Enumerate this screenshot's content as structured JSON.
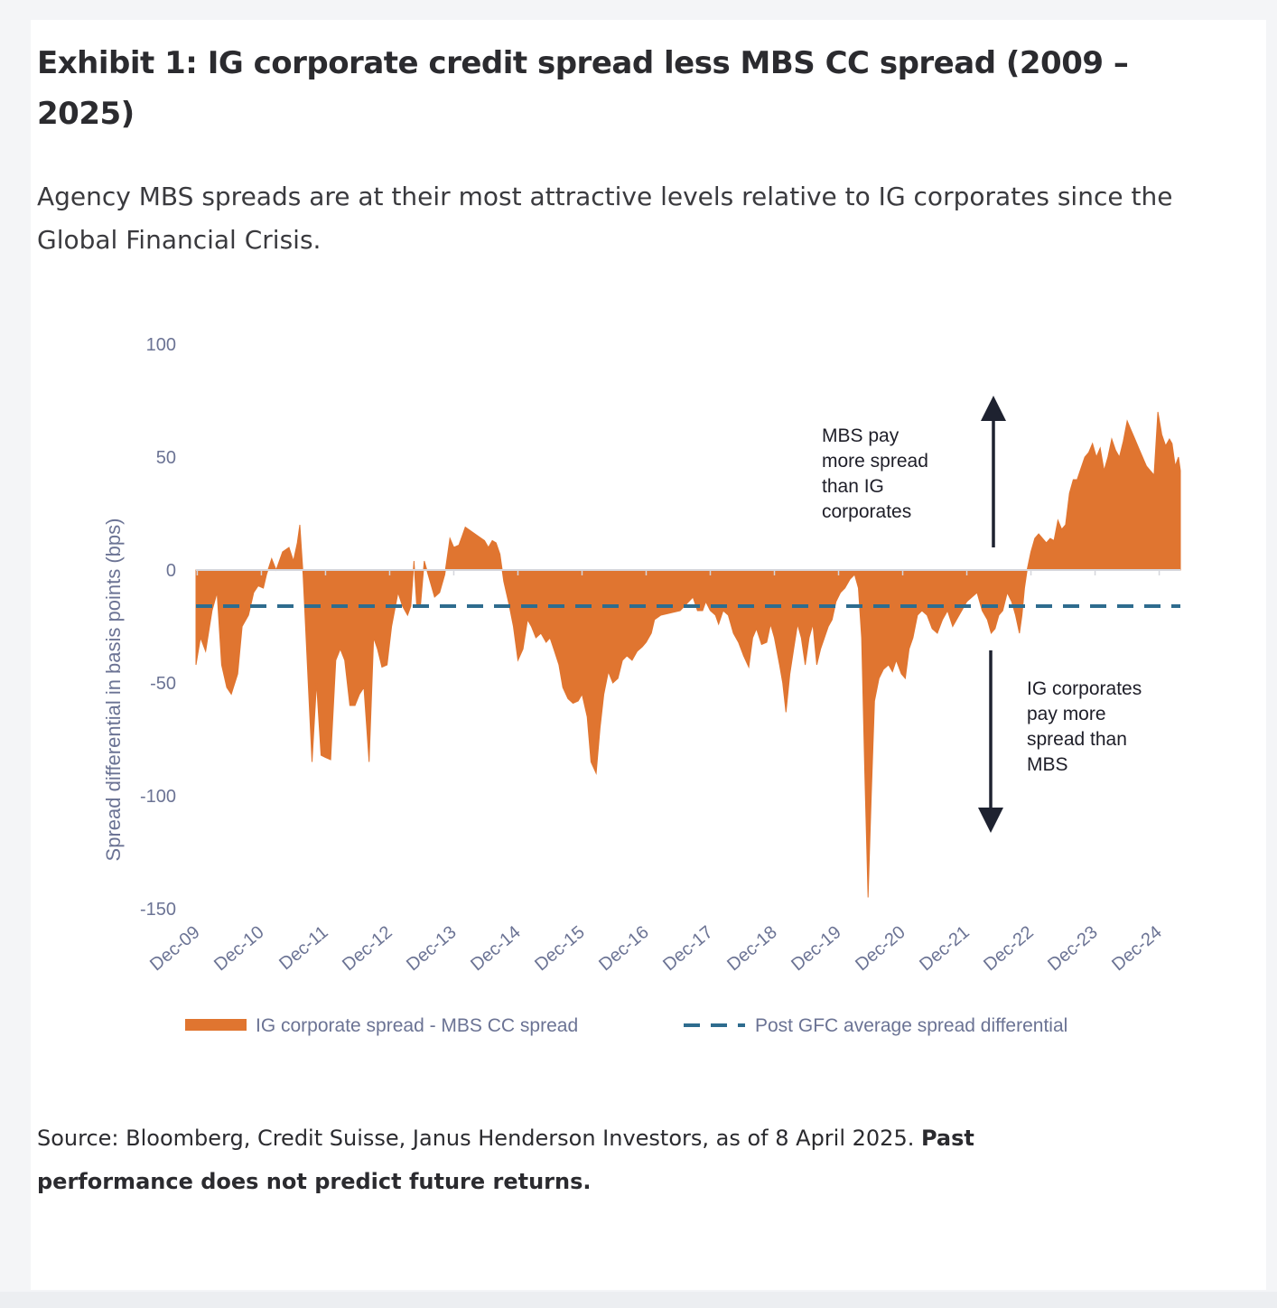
{
  "exhibit": {
    "title": "Exhibit 1: IG corporate credit spread less MBS CC spread (2009 – 2025)",
    "subtitle": "Agency MBS spreads are at their most attractive levels relative to IG corporates since the Global Financial Crisis.",
    "source_text": "Source: Bloomberg, Credit Suisse, Janus Henderson Investors, as of 8 April 2025. ",
    "source_bold": "Past performance does not predict future returns."
  },
  "colors": {
    "area": "#e07530",
    "dashed_line": "#2e6c8e",
    "axis_text": "#6b7394",
    "annotation_text": "#1e1e28",
    "arrow": "#1e2230"
  },
  "chart_data": {
    "type": "area",
    "ylabel": "Spread differential in basis points (bps)",
    "ylim": [
      -150,
      100
    ],
    "yticks": [
      100,
      50,
      0,
      -50,
      -100,
      -150
    ],
    "x_tick_labels": [
      "Dec-09",
      "Dec-10",
      "Dec-11",
      "Dec-12",
      "Dec-13",
      "Dec-14",
      "Dec-15",
      "Dec-16",
      "Dec-17",
      "Dec-18",
      "Dec-19",
      "Dec-20",
      "Dec-21",
      "Dec-22",
      "Dec-23",
      "Dec-24"
    ],
    "xlim": [
      2009.9,
      2025.25
    ],
    "grid": false,
    "legend_position": "bottom",
    "series": [
      {
        "name": "IG corporate spread - MBS CC spread",
        "type": "area",
        "points": [
          [
            2009.9,
            -42
          ],
          [
            2009.97,
            -30
          ],
          [
            2010.05,
            -36
          ],
          [
            2010.15,
            -18
          ],
          [
            2010.23,
            -10
          ],
          [
            2010.3,
            -42
          ],
          [
            2010.38,
            -52
          ],
          [
            2010.45,
            -55
          ],
          [
            2010.55,
            -46
          ],
          [
            2010.62,
            -25
          ],
          [
            2010.72,
            -20
          ],
          [
            2010.8,
            -10
          ],
          [
            2010.87,
            -7
          ],
          [
            2010.95,
            -8
          ],
          [
            2011.0,
            -2
          ],
          [
            2011.08,
            5
          ],
          [
            2011.15,
            0
          ],
          [
            2011.25,
            8
          ],
          [
            2011.35,
            10
          ],
          [
            2011.42,
            4
          ],
          [
            2011.48,
            12
          ],
          [
            2011.52,
            20
          ],
          [
            2011.57,
            -2
          ],
          [
            2011.65,
            -50
          ],
          [
            2011.71,
            -85
          ],
          [
            2011.78,
            -50
          ],
          [
            2011.85,
            -82
          ],
          [
            2011.92,
            -83
          ],
          [
            2012.0,
            -84
          ],
          [
            2012.08,
            -40
          ],
          [
            2012.15,
            -35
          ],
          [
            2012.22,
            -40
          ],
          [
            2012.3,
            -60
          ],
          [
            2012.38,
            -60
          ],
          [
            2012.45,
            -55
          ],
          [
            2012.52,
            -52
          ],
          [
            2012.6,
            -85
          ],
          [
            2012.67,
            -30
          ],
          [
            2012.73,
            -35
          ],
          [
            2012.8,
            -43
          ],
          [
            2012.88,
            -42
          ],
          [
            2012.95,
            -25
          ],
          [
            2013.05,
            -10
          ],
          [
            2013.12,
            -16
          ],
          [
            2013.2,
            -20
          ],
          [
            2013.25,
            -16
          ],
          [
            2013.3,
            4
          ],
          [
            2013.34,
            -15
          ],
          [
            2013.4,
            -16
          ],
          [
            2013.46,
            4
          ],
          [
            2013.5,
            0
          ],
          [
            2013.56,
            -6
          ],
          [
            2013.62,
            -12
          ],
          [
            2013.7,
            -10
          ],
          [
            2013.78,
            -2
          ],
          [
            2013.86,
            14
          ],
          [
            2013.92,
            10
          ],
          [
            2014.0,
            11
          ],
          [
            2014.05,
            15
          ],
          [
            2014.1,
            19
          ],
          [
            2014.2,
            17
          ],
          [
            2014.3,
            15
          ],
          [
            2014.4,
            13
          ],
          [
            2014.46,
            10
          ],
          [
            2014.52,
            13
          ],
          [
            2014.58,
            12
          ],
          [
            2014.64,
            7
          ],
          [
            2014.7,
            -5
          ],
          [
            2014.78,
            -15
          ],
          [
            2014.85,
            -25
          ],
          [
            2014.92,
            -40
          ],
          [
            2015.0,
            -35
          ],
          [
            2015.07,
            -22
          ],
          [
            2015.13,
            -25
          ],
          [
            2015.2,
            -30
          ],
          [
            2015.28,
            -28
          ],
          [
            2015.36,
            -32
          ],
          [
            2015.42,
            -30
          ],
          [
            2015.48,
            -35
          ],
          [
            2015.56,
            -42
          ],
          [
            2015.62,
            -52
          ],
          [
            2015.7,
            -57
          ],
          [
            2015.78,
            -59
          ],
          [
            2015.86,
            -58
          ],
          [
            2015.92,
            -55
          ],
          [
            2016.0,
            -65
          ],
          [
            2016.06,
            -85
          ],
          [
            2016.14,
            -90
          ],
          [
            2016.2,
            -70
          ],
          [
            2016.26,
            -55
          ],
          [
            2016.33,
            -45
          ],
          [
            2016.4,
            -50
          ],
          [
            2016.48,
            -48
          ],
          [
            2016.55,
            -40
          ],
          [
            2016.62,
            -38
          ],
          [
            2016.7,
            -40
          ],
          [
            2016.78,
            -36
          ],
          [
            2016.86,
            -34
          ],
          [
            2016.92,
            -32
          ],
          [
            2017.0,
            -28
          ],
          [
            2017.05,
            -22
          ],
          [
            2017.15,
            -20
          ],
          [
            2017.3,
            -19
          ],
          [
            2017.45,
            -18
          ],
          [
            2017.55,
            -15
          ],
          [
            2017.65,
            -12
          ],
          [
            2017.72,
            -18
          ],
          [
            2017.8,
            -18
          ],
          [
            2017.85,
            -14
          ],
          [
            2017.92,
            -18
          ],
          [
            2018.0,
            -20
          ],
          [
            2018.05,
            -24
          ],
          [
            2018.12,
            -18
          ],
          [
            2018.2,
            -20
          ],
          [
            2018.28,
            -28
          ],
          [
            2018.36,
            -32
          ],
          [
            2018.44,
            -38
          ],
          [
            2018.52,
            -43
          ],
          [
            2018.58,
            -30
          ],
          [
            2018.64,
            -26
          ],
          [
            2018.72,
            -33
          ],
          [
            2018.8,
            -32
          ],
          [
            2018.86,
            -24
          ],
          [
            2018.92,
            -30
          ],
          [
            2019.0,
            -42
          ],
          [
            2019.05,
            -50
          ],
          [
            2019.1,
            -63
          ],
          [
            2019.16,
            -46
          ],
          [
            2019.22,
            -35
          ],
          [
            2019.28,
            -24
          ],
          [
            2019.34,
            -30
          ],
          [
            2019.4,
            -42
          ],
          [
            2019.46,
            -30
          ],
          [
            2019.52,
            -24
          ],
          [
            2019.58,
            -42
          ],
          [
            2019.64,
            -35
          ],
          [
            2019.7,
            -30
          ],
          [
            2019.76,
            -25
          ],
          [
            2019.82,
            -22
          ],
          [
            2019.88,
            -14
          ],
          [
            2019.95,
            -10
          ],
          [
            2020.02,
            -8
          ],
          [
            2020.1,
            -4
          ],
          [
            2020.17,
            -2
          ],
          [
            2020.23,
            -8
          ],
          [
            2020.28,
            -30
          ],
          [
            2020.33,
            -90
          ],
          [
            2020.38,
            -145
          ],
          [
            2020.43,
            -100
          ],
          [
            2020.48,
            -58
          ],
          [
            2020.55,
            -48
          ],
          [
            2020.62,
            -44
          ],
          [
            2020.7,
            -42
          ],
          [
            2020.76,
            -45
          ],
          [
            2020.82,
            -40
          ],
          [
            2020.9,
            -46
          ],
          [
            2020.96,
            -48
          ],
          [
            2021.02,
            -35
          ],
          [
            2021.08,
            -30
          ],
          [
            2021.15,
            -20
          ],
          [
            2021.22,
            -18
          ],
          [
            2021.3,
            -20
          ],
          [
            2021.38,
            -26
          ],
          [
            2021.46,
            -28
          ],
          [
            2021.54,
            -22
          ],
          [
            2021.62,
            -18
          ],
          [
            2021.7,
            -25
          ],
          [
            2021.78,
            -21
          ],
          [
            2021.84,
            -18
          ],
          [
            2021.92,
            -14
          ],
          [
            2022.0,
            -12
          ],
          [
            2022.08,
            -10
          ],
          [
            2022.16,
            -18
          ],
          [
            2022.24,
            -22
          ],
          [
            2022.3,
            -28
          ],
          [
            2022.36,
            -26
          ],
          [
            2022.42,
            -20
          ],
          [
            2022.48,
            -18
          ],
          [
            2022.55,
            -10
          ],
          [
            2022.62,
            -14
          ],
          [
            2022.68,
            -20
          ],
          [
            2022.74,
            -28
          ],
          [
            2022.78,
            -20
          ],
          [
            2022.82,
            -8
          ],
          [
            2022.86,
            0
          ],
          [
            2022.92,
            8
          ],
          [
            2022.98,
            14
          ],
          [
            2023.04,
            16
          ],
          [
            2023.1,
            14
          ],
          [
            2023.16,
            12
          ],
          [
            2023.22,
            14
          ],
          [
            2023.28,
            13
          ],
          [
            2023.34,
            22
          ],
          [
            2023.4,
            18
          ],
          [
            2023.46,
            20
          ],
          [
            2023.52,
            34
          ],
          [
            2023.58,
            40
          ],
          [
            2023.64,
            40
          ],
          [
            2023.7,
            45
          ],
          [
            2023.76,
            50
          ],
          [
            2023.82,
            52
          ],
          [
            2023.88,
            56
          ],
          [
            2023.94,
            50
          ],
          [
            2024.0,
            54
          ],
          [
            2024.06,
            44
          ],
          [
            2024.12,
            50
          ],
          [
            2024.18,
            58
          ],
          [
            2024.24,
            53
          ],
          [
            2024.3,
            50
          ],
          [
            2024.36,
            57
          ],
          [
            2024.42,
            66
          ],
          [
            2024.48,
            62
          ],
          [
            2024.54,
            58
          ],
          [
            2024.6,
            54
          ],
          [
            2024.66,
            50
          ],
          [
            2024.72,
            46
          ],
          [
            2024.78,
            44
          ],
          [
            2024.84,
            42
          ],
          [
            2024.9,
            70
          ],
          [
            2024.96,
            60
          ],
          [
            2025.02,
            55
          ],
          [
            2025.08,
            58
          ],
          [
            2025.12,
            56
          ],
          [
            2025.17,
            46
          ],
          [
            2025.22,
            50
          ],
          [
            2025.25,
            44
          ]
        ]
      },
      {
        "name": "Post GFC average spread differential",
        "type": "dashed-line",
        "value": -16
      }
    ],
    "annotations": [
      {
        "lines": [
          "MBS pay",
          "more spread",
          "than IG",
          "corporates"
        ],
        "arrow": "up"
      },
      {
        "lines": [
          "IG corporates",
          "pay more",
          "spread than",
          "MBS"
        ],
        "arrow": "down"
      }
    ]
  }
}
